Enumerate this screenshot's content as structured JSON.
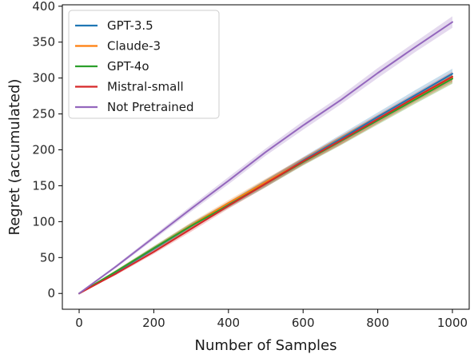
{
  "chart_data": {
    "type": "line",
    "xlabel": "Number of Samples",
    "ylabel": "Regret (accumulated)",
    "xlim": [
      -45,
      1045
    ],
    "ylim": [
      -22,
      402
    ],
    "xticks": [
      0,
      200,
      400,
      600,
      800,
      1000
    ],
    "yticks": [
      0,
      50,
      100,
      150,
      200,
      250,
      300,
      350,
      400
    ],
    "legend_position": "top-left",
    "grid": false,
    "series": [
      {
        "name": "GPT-3.5",
        "color": "#1f77b4",
        "x": [
          0,
          100,
          200,
          300,
          400,
          500,
          600,
          700,
          800,
          900,
          1000
        ],
        "y": [
          0,
          30,
          62,
          94,
          124,
          154,
          185,
          215,
          246,
          276,
          306
        ],
        "band": [
          0,
          2,
          3,
          4,
          4,
          5,
          5,
          6,
          6,
          7,
          7
        ]
      },
      {
        "name": "Claude-3",
        "color": "#ff7f0e",
        "x": [
          0,
          100,
          200,
          300,
          400,
          500,
          600,
          700,
          800,
          900,
          1000
        ],
        "y": [
          0,
          31,
          63,
          95,
          126,
          155,
          184,
          213,
          242,
          271,
          300
        ],
        "band": [
          0,
          2,
          3,
          4,
          4,
          5,
          5,
          6,
          6,
          6,
          7
        ]
      },
      {
        "name": "GPT-4o",
        "color": "#2ca02c",
        "x": [
          0,
          100,
          200,
          300,
          400,
          500,
          600,
          700,
          800,
          900,
          1000
        ],
        "y": [
          0,
          31,
          63,
          94,
          123,
          153,
          183,
          212,
          241,
          270,
          299
        ],
        "band": [
          0,
          2,
          3,
          4,
          4,
          5,
          5,
          6,
          6,
          6,
          7
        ]
      },
      {
        "name": "Mistral-small",
        "color": "#d62728",
        "x": [
          0,
          100,
          200,
          300,
          400,
          500,
          600,
          700,
          800,
          900,
          1000
        ],
        "y": [
          0,
          28,
          58,
          90,
          122,
          153,
          184,
          213,
          243,
          273,
          302
        ],
        "band": [
          0,
          2,
          3,
          4,
          4,
          5,
          5,
          6,
          6,
          6,
          7
        ]
      },
      {
        "name": "Not Pretrained",
        "color": "#9467bd",
        "x": [
          0,
          100,
          200,
          300,
          400,
          500,
          600,
          700,
          800,
          900,
          1000
        ],
        "y": [
          0,
          38,
          78,
          118,
          157,
          197,
          234,
          269,
          307,
          343,
          378
        ],
        "band": [
          0,
          2,
          3,
          4,
          5,
          5,
          6,
          6,
          7,
          7,
          8
        ]
      }
    ]
  }
}
